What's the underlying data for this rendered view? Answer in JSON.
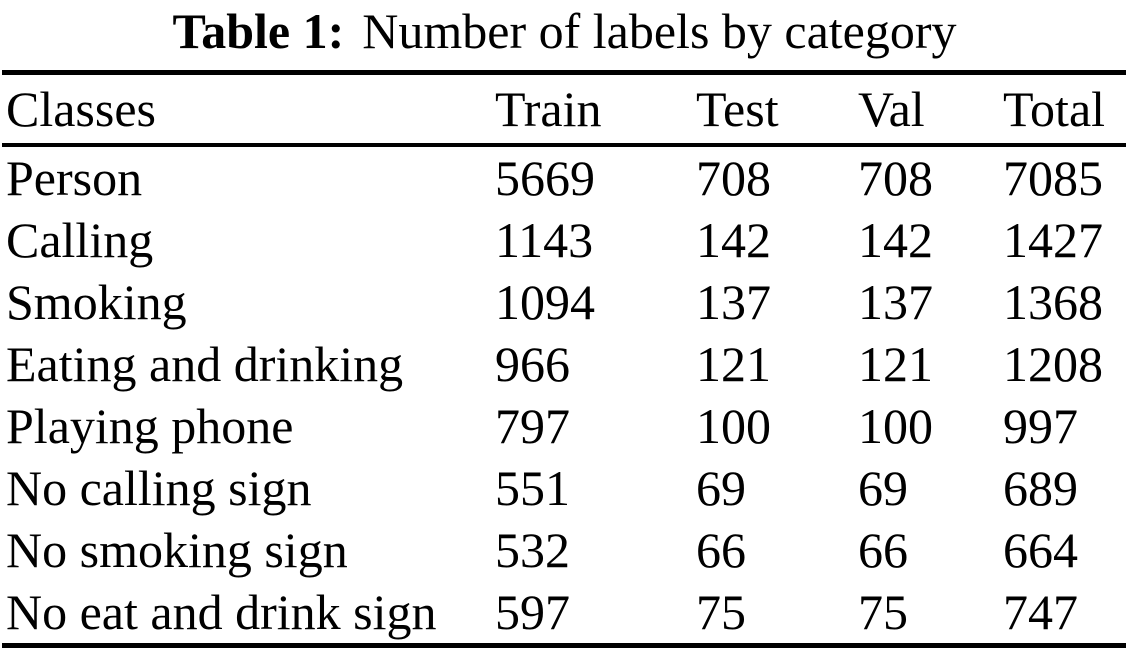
{
  "title": {
    "bold": "Table 1:",
    "text": "Number of labels by category"
  },
  "colors": {
    "background": "#ffffff",
    "text": "#000000",
    "rule": "#000000"
  },
  "table": {
    "headers": [
      "Classes",
      "Train",
      "Test",
      "Val",
      "Total"
    ],
    "rows": [
      [
        "Person",
        "5669",
        "708",
        "708",
        "7085"
      ],
      [
        "Calling",
        "1143",
        "142",
        "142",
        "1427"
      ],
      [
        "Smoking",
        "1094",
        "137",
        "137",
        "1368"
      ],
      [
        "Eating and drinking",
        "966",
        "121",
        "121",
        "1208"
      ],
      [
        "Playing phone",
        "797",
        "100",
        "100",
        "997"
      ],
      [
        "No calling sign",
        "551",
        "69",
        "69",
        "689"
      ],
      [
        "No smoking sign",
        "532",
        "66",
        "66",
        "664"
      ],
      [
        "No eat and drink sign",
        "597",
        "75",
        "75",
        "747"
      ]
    ]
  },
  "chart_data": {
    "type": "table",
    "title": "Table 1: Number of labels by category",
    "columns": [
      "Classes",
      "Train",
      "Test",
      "Val",
      "Total"
    ],
    "rows": [
      [
        "Person",
        5669,
        708,
        708,
        7085
      ],
      [
        "Calling",
        1143,
        142,
        142,
        1427
      ],
      [
        "Smoking",
        1094,
        137,
        137,
        1368
      ],
      [
        "Eating and drinking",
        966,
        121,
        121,
        1208
      ],
      [
        "Playing phone",
        797,
        100,
        100,
        997
      ],
      [
        "No calling sign",
        551,
        69,
        69,
        689
      ],
      [
        "No smoking sign",
        532,
        66,
        66,
        664
      ],
      [
        "No eat and drink sign",
        597,
        75,
        75,
        747
      ]
    ]
  }
}
